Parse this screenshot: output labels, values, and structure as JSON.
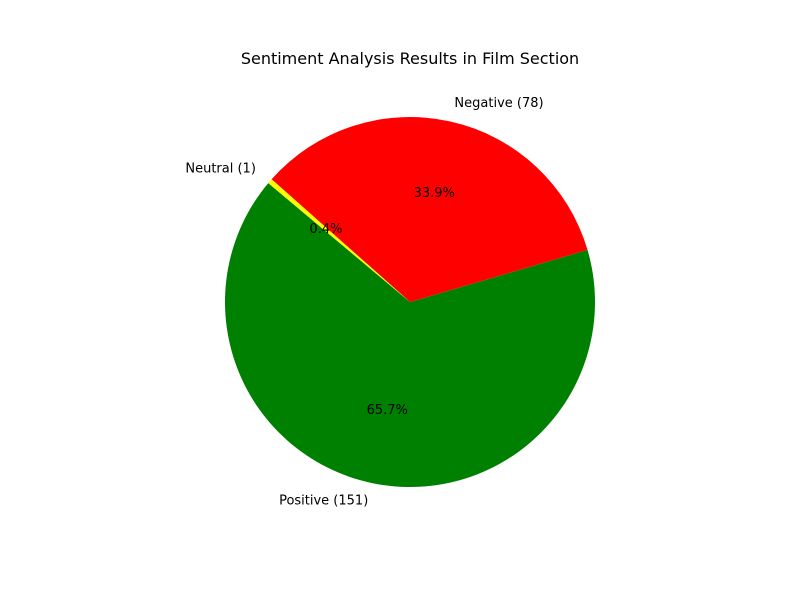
{
  "chart_data": {
    "type": "pie",
    "title": "Sentiment Analysis Results in Film Section",
    "categories": [
      "Positive",
      "Negative",
      "Neutral"
    ],
    "values": [
      151,
      78,
      1
    ],
    "labels": [
      "Positive (151)",
      "Negative (78)",
      "Neutral (1)"
    ],
    "percent_labels": [
      "65.7%",
      "33.9%",
      "0.4%"
    ],
    "colors": [
      "#008000",
      "#ff0000",
      "#ffff00"
    ],
    "start_angle_deg": 140,
    "legend": "none"
  }
}
